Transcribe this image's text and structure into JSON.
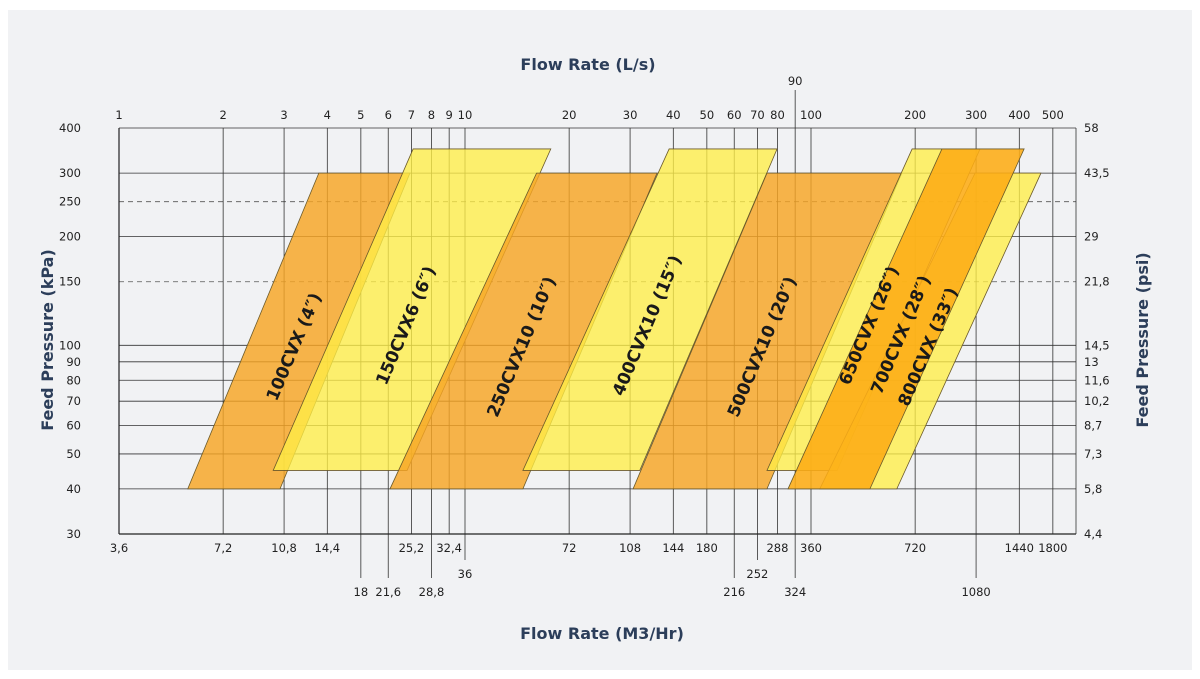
{
  "chart_data": {
    "type": "area",
    "title": "",
    "x_top_label": "Flow Rate (L/s)",
    "x_bottom_label": "Flow Rate (M3/Hr)",
    "y_left_label": "Feed Pressure (kPa)",
    "y_right_label": "Feed Pressure (psi)",
    "x_scale": "log",
    "y_scale": "log",
    "xlim_ls": [
      1,
      583
    ],
    "ylim_kpa": [
      30,
      400
    ],
    "grid": true,
    "top_ticks": [
      {
        "v": 1,
        "label": "1"
      },
      {
        "v": 2,
        "label": "2"
      },
      {
        "v": 3,
        "label": "3"
      },
      {
        "v": 4,
        "label": "4"
      },
      {
        "v": 5,
        "label": "5"
      },
      {
        "v": 6,
        "label": "6"
      },
      {
        "v": 7,
        "label": "7"
      },
      {
        "v": 8,
        "label": "8"
      },
      {
        "v": 9,
        "label": "9"
      },
      {
        "v": 10,
        "label": "10"
      },
      {
        "v": 20,
        "label": "20"
      },
      {
        "v": 30,
        "label": "30"
      },
      {
        "v": 40,
        "label": "40"
      },
      {
        "v": 50,
        "label": "50"
      },
      {
        "v": 60,
        "label": "60"
      },
      {
        "v": 70,
        "label": "70"
      },
      {
        "v": 80,
        "label": "80"
      },
      {
        "v": 90,
        "label": "90",
        "raised": true
      },
      {
        "v": 100,
        "label": "100"
      },
      {
        "v": 200,
        "label": "200"
      },
      {
        "v": 300,
        "label": "300"
      },
      {
        "v": 400,
        "label": "400"
      },
      {
        "v": 500,
        "label": "500"
      }
    ],
    "bottom_ticks": [
      {
        "v": 1,
        "label": "3,6",
        "row": 0
      },
      {
        "v": 2,
        "label": "7,2",
        "row": 0
      },
      {
        "v": 3,
        "label": "10,8",
        "row": 0
      },
      {
        "v": 4,
        "label": "14,4",
        "row": 0
      },
      {
        "v": 5,
        "label": "18",
        "row": 2
      },
      {
        "v": 6,
        "label": "21,6",
        "row": 2
      },
      {
        "v": 7,
        "label": "25,2",
        "row": 0
      },
      {
        "v": 8,
        "label": "28,8",
        "row": 2
      },
      {
        "v": 9,
        "label": "32,4",
        "row": 0
      },
      {
        "v": 10,
        "label": "36",
        "row": 1
      },
      {
        "v": 20,
        "label": "72",
        "row": 0
      },
      {
        "v": 30,
        "label": "108",
        "row": 0
      },
      {
        "v": 40,
        "label": "144",
        "row": 0
      },
      {
        "v": 50,
        "label": "180",
        "row": 0
      },
      {
        "v": 60,
        "label": "216",
        "row": 2
      },
      {
        "v": 70,
        "label": "252",
        "row": 1
      },
      {
        "v": 80,
        "label": "288",
        "row": 0
      },
      {
        "v": 90,
        "label": "324",
        "row": 2
      },
      {
        "v": 100,
        "label": "360",
        "row": 0
      },
      {
        "v": 200,
        "label": "720",
        "row": 0
      },
      {
        "v": 300,
        "label": "1080",
        "row": 2
      },
      {
        "v": 400,
        "label": "1440",
        "row": 0
      },
      {
        "v": 500,
        "label": "1800",
        "row": 0
      }
    ],
    "y_ticks": [
      {
        "kpa": 400,
        "label": "400",
        "psi": "58"
      },
      {
        "kpa": 300,
        "label": "300",
        "psi": "43,5"
      },
      {
        "kpa": 250,
        "label": "250",
        "psi": "",
        "dashed": true
      },
      {
        "kpa": 200,
        "label": "200",
        "psi": "29"
      },
      {
        "kpa": 150,
        "label": "150",
        "psi": "21,8",
        "dashed": true
      },
      {
        "kpa": 100,
        "label": "100",
        "psi": "14,5"
      },
      {
        "kpa": 90,
        "label": "90",
        "psi": "13"
      },
      {
        "kpa": 80,
        "label": "80",
        "psi": "11,6"
      },
      {
        "kpa": 70,
        "label": "70",
        "psi": "10,2"
      },
      {
        "kpa": 60,
        "label": "60",
        "psi": "8,7"
      },
      {
        "kpa": 50,
        "label": "50",
        "psi": "7,3"
      },
      {
        "kpa": 40,
        "label": "40",
        "psi": "5,8"
      },
      {
        "kpa": 30,
        "label": "30",
        "psi": "4,4"
      }
    ],
    "colors": {
      "orange": "#f7a932",
      "yellow": "#fff05a",
      "dark_orange": "#fdb01c",
      "title": "#2c3e5a"
    },
    "series": [
      {
        "name": "100CVX (4″)",
        "color": "orange",
        "kpa_min": 40,
        "kpa_max": 300,
        "bottom_ls": [
          1.58,
          2.92
        ],
        "top_ls": [
          3.78,
          6.93
        ]
      },
      {
        "name": "150CVX6 (6″)",
        "color": "yellow",
        "kpa_min": 45,
        "kpa_max": 350,
        "bottom_ls": [
          2.79,
          6.8
        ],
        "top_ls": [
          7.08,
          17.7
        ]
      },
      {
        "name": "250CVX10 (10″)",
        "color": "orange",
        "kpa_min": 40,
        "kpa_max": 300,
        "bottom_ls": [
          6.07,
          14.7
        ],
        "top_ls": [
          16.1,
          35.9
        ]
      },
      {
        "name": "400CVX10 (15″)",
        "color": "yellow",
        "kpa_min": 45,
        "kpa_max": 350,
        "bottom_ls": [
          14.7,
          32.0
        ],
        "top_ls": [
          38.9,
          79.8
        ]
      },
      {
        "name": "500CVX10 (20″)",
        "color": "orange",
        "kpa_min": 40,
        "kpa_max": 300,
        "bottom_ls": [
          30.6,
          74.6
        ],
        "top_ls": [
          74.6,
          183
        ]
      },
      {
        "name": "650CVX (26″)",
        "color": "yellow",
        "kpa_min": 45,
        "kpa_max": 350,
        "bottom_ls": [
          74.6,
          119
        ],
        "top_ls": [
          196,
          308
        ]
      },
      {
        "name": "800CVX (33″)",
        "color": "yellow",
        "kpa_min": 40,
        "kpa_max": 300,
        "bottom_ls": [
          106,
          177
        ],
        "top_ls": [
          298,
          462
        ]
      },
      {
        "name": "700CVX (28″)",
        "color": "dark_orange",
        "kpa_min": 40,
        "kpa_max": 350,
        "bottom_ls": [
          85.8,
          148
        ],
        "top_ls": [
          239,
          413
        ]
      }
    ]
  }
}
